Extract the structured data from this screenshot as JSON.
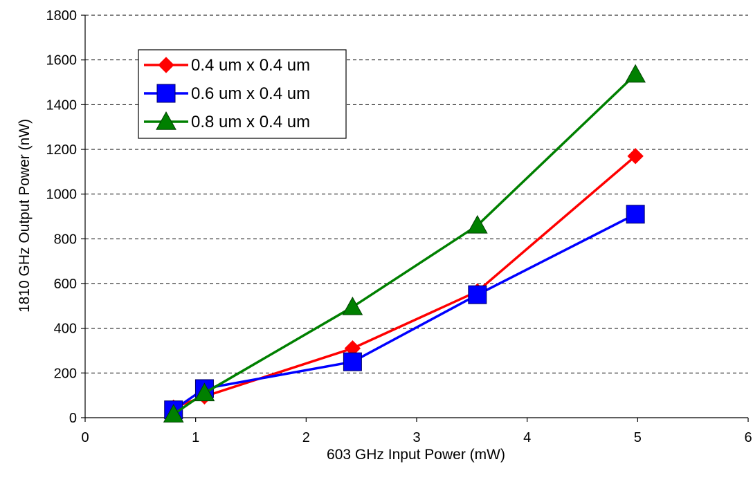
{
  "chart_data": {
    "type": "line",
    "title": "",
    "xlabel": "603 GHz Input Power (mW)",
    "ylabel": "1810 GHz Output Power (nW)",
    "xlim": [
      0,
      6
    ],
    "ylim": [
      0,
      1800
    ],
    "xticks": [
      0,
      1,
      2,
      3,
      4,
      5,
      6
    ],
    "yticks": [
      0,
      200,
      400,
      600,
      800,
      1000,
      1200,
      1400,
      1600,
      1800
    ],
    "grid": {
      "horizontal": true,
      "style": "dashed"
    },
    "legend_position": "top-left",
    "series": [
      {
        "name": "0.4 um x 0.4 um",
        "color": "#ff0000",
        "marker": "diamond",
        "x": [
          0.8,
          1.08,
          2.42,
          3.55,
          4.98
        ],
        "y": [
          45,
          95,
          310,
          565,
          1170
        ]
      },
      {
        "name": "0.6 um x 0.4 um",
        "color": "#0000ff",
        "marker": "square",
        "x": [
          0.8,
          1.08,
          2.42,
          3.55,
          4.98
        ],
        "y": [
          35,
          130,
          250,
          550,
          910
        ]
      },
      {
        "name": "0.8 um x 0.4 um",
        "color": "#008000",
        "marker": "triangle",
        "x": [
          0.8,
          1.08,
          2.42,
          3.55,
          4.98
        ],
        "y": [
          15,
          110,
          495,
          860,
          1535
        ]
      }
    ]
  }
}
